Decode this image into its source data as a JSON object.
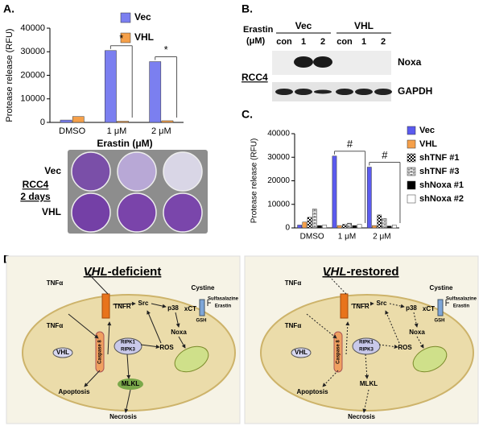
{
  "chart_data": [
    {
      "type": "bar",
      "panel_label": "A.",
      "y_label": "Protease release (RFU)",
      "x_label": "Erastin (μM)",
      "categories": [
        "DMSO",
        "1 μM",
        "2 μM"
      ],
      "series": [
        {
          "name": "Vec",
          "color": "#7b7ff0",
          "values": [
            1000,
            30500,
            25800
          ]
        },
        {
          "name": "VHL",
          "color": "#f5a04a",
          "values": [
            2500,
            500,
            700
          ]
        }
      ],
      "ylim": [
        0,
        40000
      ],
      "yticks": [
        0,
        10000,
        20000,
        30000,
        40000
      ],
      "annotations": [
        "*",
        "*"
      ]
    },
    {
      "type": "bar",
      "panel_label": "C.",
      "y_label": "Protease release (RFU)",
      "categories": [
        "DMSO",
        "1 μM",
        "2 μM"
      ],
      "series": [
        {
          "name": "Vec",
          "color": "#5b5bef",
          "values": [
            1200,
            30500,
            25800
          ]
        },
        {
          "name": "VHL",
          "color": "#f5a04a",
          "values": [
            2500,
            1000,
            1000
          ]
        },
        {
          "name": "shTNF #1",
          "color": "#000000",
          "pattern": "checker",
          "values": [
            4500,
            1500,
            5500
          ]
        },
        {
          "name": "shTNF #3",
          "color": "#000000",
          "pattern": "brick",
          "values": [
            8000,
            2000,
            4000
          ]
        },
        {
          "name": "shNoxa #1",
          "color": "#000000",
          "values": [
            1000,
            1000,
            800
          ]
        },
        {
          "name": "shNoxa #2",
          "color": "#ffffff",
          "values": [
            1200,
            1500,
            1200
          ]
        }
      ],
      "ylim": [
        0,
        40000
      ],
      "yticks": [
        0,
        10000,
        20000,
        30000,
        40000
      ],
      "annotations": [
        "#",
        "#"
      ]
    }
  ],
  "plate": {
    "rows": [
      "Vec",
      "VHL"
    ],
    "cell_line": "RCC4",
    "duration": "2 days"
  },
  "blot": {
    "panel_label": "B.",
    "treatment": [
      "Erastin",
      "(μM)"
    ],
    "groups": [
      "Vec",
      "VHL"
    ],
    "lanes": [
      "con",
      "1",
      "2",
      "con",
      "1",
      "2"
    ],
    "proteins": [
      "Noxa",
      "GAPDH"
    ],
    "cell_line": "RCC4"
  },
  "diagram": {
    "panel_label": "D.",
    "panels": [
      {
        "title": {
          "gene": "VHL",
          "suffix": "-deficient"
        },
        "labels": {
          "tnf_out": "TNFα",
          "tnfr": "TNFR",
          "src": "Src",
          "p38": "p38",
          "noxa": "Noxa",
          "xct": "xCT",
          "cystine": "Cystine",
          "inhibitor1": "Sulfasalazine",
          "inhibitor2": "Erastin",
          "gsh": "GSH",
          "tnf_in": "TNFα",
          "vhl": "VHL",
          "caspase": "Caspase 8",
          "ripk1": "RIPK1",
          "ripk3": "RIPK3",
          "ros": "ROS",
          "mlkl": "MLKL",
          "apoptosis": "Apoptosis",
          "necrosis": "Necrosis"
        }
      },
      {
        "title": {
          "gene": "VHL",
          "suffix": "-restored"
        },
        "labels": {
          "tnf_out": "TNFα",
          "tnfr": "TNFR",
          "src": "Src",
          "p38": "p38",
          "noxa": "Noxa",
          "xct": "xCT",
          "cystine": "Cystine",
          "inhibitor1": "Sulfasalazine",
          "inhibitor2": "Erastin",
          "gsh": "GSH",
          "tnf_in": "TNFα",
          "vhl": "VHL",
          "caspase": "Caspase 8",
          "ripk1": "RIPK1",
          "ripk3": "RIPK3",
          "ros": "ROS",
          "mlkl": "MLKL",
          "apoptosis": "Apoptosis",
          "necrosis": "Necrosis"
        }
      }
    ]
  }
}
